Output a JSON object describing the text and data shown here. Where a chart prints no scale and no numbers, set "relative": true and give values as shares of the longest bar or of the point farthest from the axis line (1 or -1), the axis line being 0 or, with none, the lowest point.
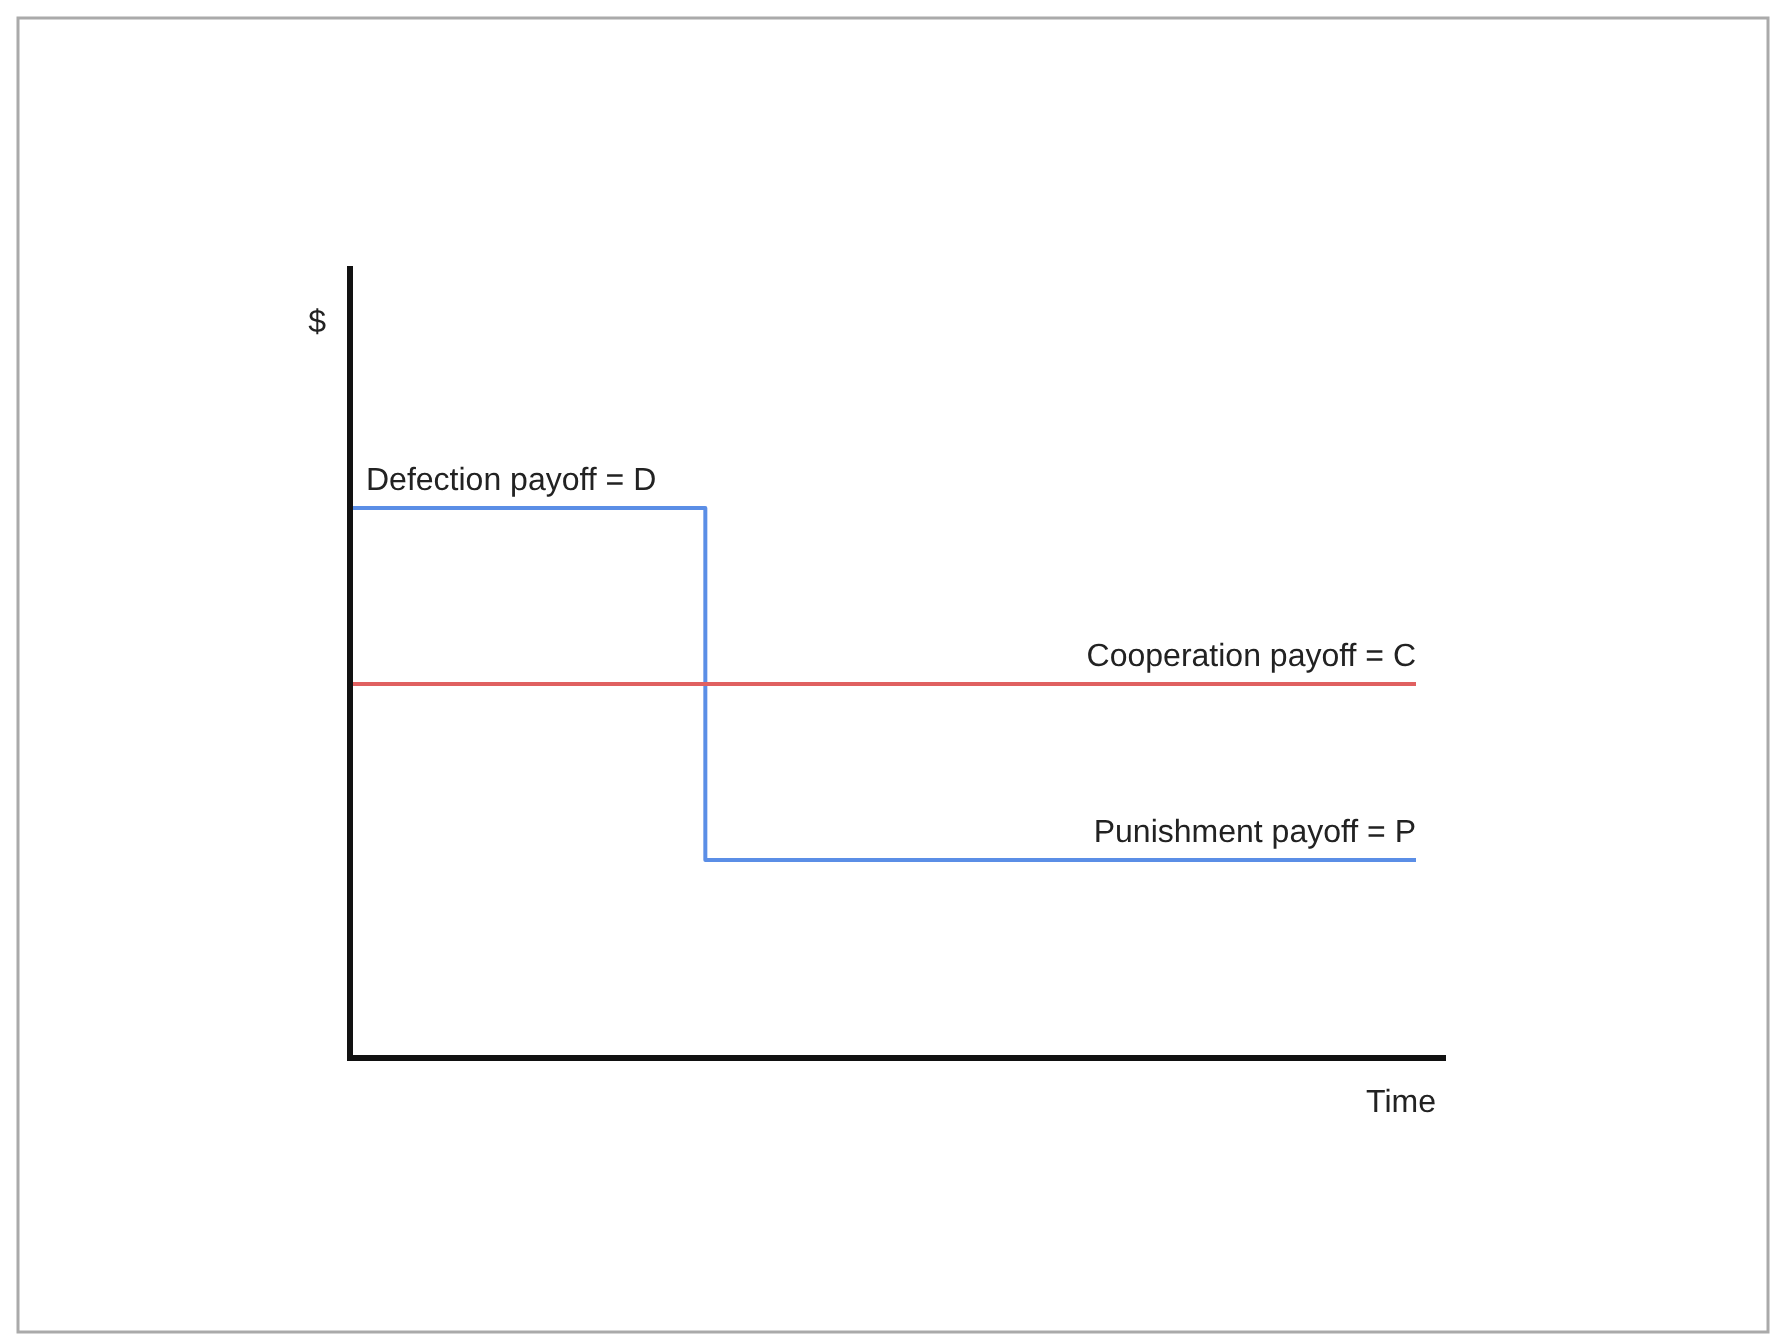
{
  "chart_data": {
    "type": "line",
    "relative": true,
    "xlabel": "Time",
    "categories": [
      null,
      null,
      null,
      null
    ],
    "series": [
      {
        "type": "step",
        "color": "#5b8ee6",
        "values": [
          1,
          0.36,
          0.36,
          0.36
        ]
      },
      {
        "name": "Cooperation payoff = C",
        "color": "#e06060",
        "values": [
          0.68,
          0.68,
          0.68,
          0.68
        ]
      }
    ],
    "annotations": [
      "$",
      {
        "text": "Defection payoff = D",
        "y": 1
      },
      {
        "text": "Punishment payoff = P",
        "y": 0.36
      }
    ]
  }
}
